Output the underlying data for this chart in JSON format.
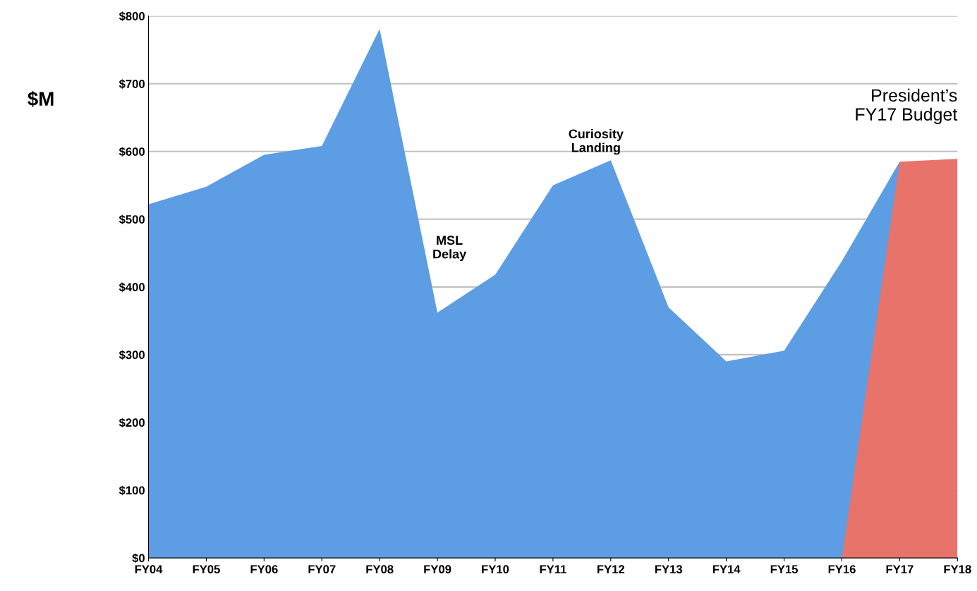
{
  "chart_data": {
    "type": "area",
    "ylabel": "$M",
    "categories": [
      "FY04",
      "FY05",
      "FY06",
      "FY07",
      "FY08",
      "FY09",
      "FY10",
      "FY11",
      "FY12",
      "FY13",
      "FY14",
      "FY15",
      "FY16",
      "FY17",
      "FY18"
    ],
    "series": [
      {
        "color": "#5d9de3",
        "values": [
          522,
          548,
          595,
          608,
          781,
          362,
          418,
          550,
          587,
          370,
          290,
          306,
          438,
          585,
          null
        ]
      },
      {
        "color": "#e8736b",
        "values": [
          null,
          null,
          null,
          null,
          null,
          null,
          null,
          null,
          null,
          null,
          null,
          null,
          0,
          585,
          589
        ]
      }
    ],
    "ylim": [
      0,
      800
    ],
    "yticks": [
      {
        "value": 0,
        "label": "$0"
      },
      {
        "value": 100,
        "label": "$100"
      },
      {
        "value": 200,
        "label": "$200"
      },
      {
        "value": 300,
        "label": "$300"
      },
      {
        "value": 400,
        "label": "$400"
      },
      {
        "value": 500,
        "label": "$500"
      },
      {
        "value": 600,
        "label": "$600"
      },
      {
        "value": 700,
        "label": "$700"
      },
      {
        "value": 800,
        "label": "$800"
      }
    ],
    "grid": "y",
    "legend": false,
    "annotations": [
      "MSL\nDelay",
      "Curiosity\nLanding",
      "President’s\nFY17 Budget"
    ]
  }
}
